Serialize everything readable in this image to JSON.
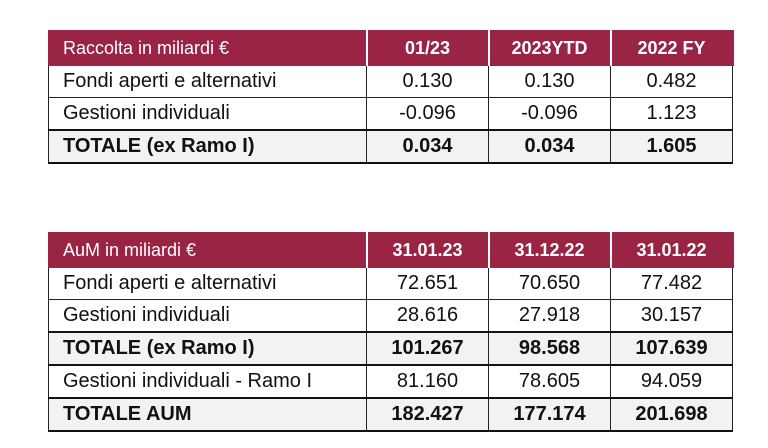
{
  "tables": [
    {
      "header": [
        "Raccolta in miliardi €",
        "01/23",
        "2023YTD",
        "2022 FY"
      ],
      "rows": [
        [
          "Fondi aperti e alternativi",
          "0.130",
          "0.130",
          "0.482"
        ],
        [
          "Gestioni individuali",
          "-0.096",
          "-0.096",
          "1.123"
        ],
        [
          "TOTALE (ex Ramo I)",
          "0.034",
          "0.034",
          "1.605"
        ]
      ]
    },
    {
      "header": [
        "AuM in miliardi €",
        "31.01.23",
        "31.12.22",
        "31.01.22"
      ],
      "rows": [
        [
          "Fondi aperti e alternativi",
          "72.651",
          "70.650",
          "77.482"
        ],
        [
          "Gestioni individuali",
          "28.616",
          "27.918",
          "30.157"
        ],
        [
          "TOTALE (ex Ramo I)",
          "101.267",
          "98.568",
          "107.639"
        ],
        [
          "Gestioni individuali - Ramo I",
          "81.160",
          "78.605",
          "94.059"
        ],
        [
          "TOTALE AUM",
          "182.427",
          "177.174",
          "201.698"
        ]
      ]
    }
  ]
}
